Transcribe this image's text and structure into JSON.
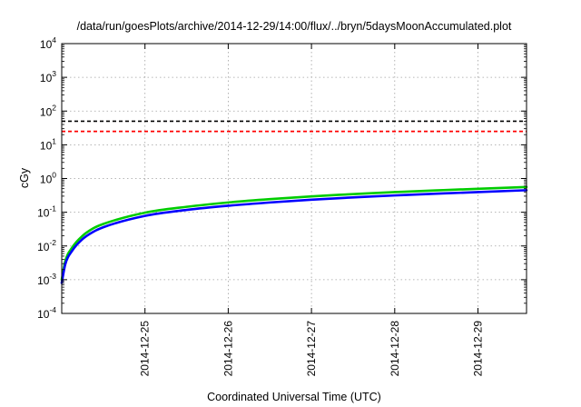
{
  "chart_data": {
    "type": "line",
    "title": "/data/run/goesPlots/archive/2014-12-29/14:00/flux/../bryn/5daysMoonAccumulated.plot",
    "xlabel": "Coordinated Universal Time (UTC)",
    "ylabel": "cGy",
    "yscale": "log",
    "ylim": [
      0.0001,
      10000
    ],
    "xlim": [
      "2014-12-24T00:00",
      "2014-12-29T14:00"
    ],
    "x_ticks": [
      "2014-12-25",
      "2014-12-26",
      "2014-12-27",
      "2014-12-28",
      "2014-12-29"
    ],
    "y_ticks": [
      {
        "base": "10",
        "exp": "-4"
      },
      {
        "base": "10",
        "exp": "-3"
      },
      {
        "base": "10",
        "exp": "-2"
      },
      {
        "base": "10",
        "exp": "-1"
      },
      {
        "base": "10",
        "exp": "0"
      },
      {
        "base": "10",
        "exp": "1"
      },
      {
        "base": "10",
        "exp": "2"
      },
      {
        "base": "10",
        "exp": "3"
      },
      {
        "base": "10",
        "exp": "4"
      }
    ],
    "grid": true,
    "reference_lines": [
      {
        "y": 50,
        "color": "#000000",
        "style": "dashed"
      },
      {
        "y": 25,
        "color": "#ff0000",
        "style": "dashed"
      }
    ],
    "series": [
      {
        "color": "#00cc00",
        "x": [
          "2014-12-24T00:00",
          "2014-12-24T01:00",
          "2014-12-24T03:00",
          "2014-12-24T06:00",
          "2014-12-24T09:00",
          "2014-12-24T12:00",
          "2014-12-25T00:00",
          "2014-12-25T12:00",
          "2014-12-26T00:00",
          "2014-12-26T12:00",
          "2014-12-27T00:00",
          "2014-12-27T12:00",
          "2014-12-28T00:00",
          "2014-12-28T12:00",
          "2014-12-29T00:00",
          "2014-12-29T14:00"
        ],
        "y": [
          0.001,
          0.0035,
          0.009,
          0.02,
          0.033,
          0.045,
          0.097,
          0.145,
          0.195,
          0.245,
          0.295,
          0.345,
          0.395,
          0.445,
          0.495,
          0.56
        ]
      },
      {
        "color": "#0000ff",
        "x": [
          "2014-12-24T00:00",
          "2014-12-24T01:00",
          "2014-12-24T03:00",
          "2014-12-24T06:00",
          "2014-12-24T09:00",
          "2014-12-24T12:00",
          "2014-12-25T00:00",
          "2014-12-25T12:00",
          "2014-12-26T00:00",
          "2014-12-26T12:00",
          "2014-12-27T00:00",
          "2014-12-27T12:00",
          "2014-12-28T00:00",
          "2014-12-28T12:00",
          "2014-12-29T00:00",
          "2014-12-29T14:00"
        ],
        "y": [
          0.0008,
          0.0028,
          0.0072,
          0.016,
          0.026,
          0.036,
          0.078,
          0.117,
          0.156,
          0.195,
          0.235,
          0.275,
          0.315,
          0.355,
          0.395,
          0.45
        ]
      }
    ]
  }
}
